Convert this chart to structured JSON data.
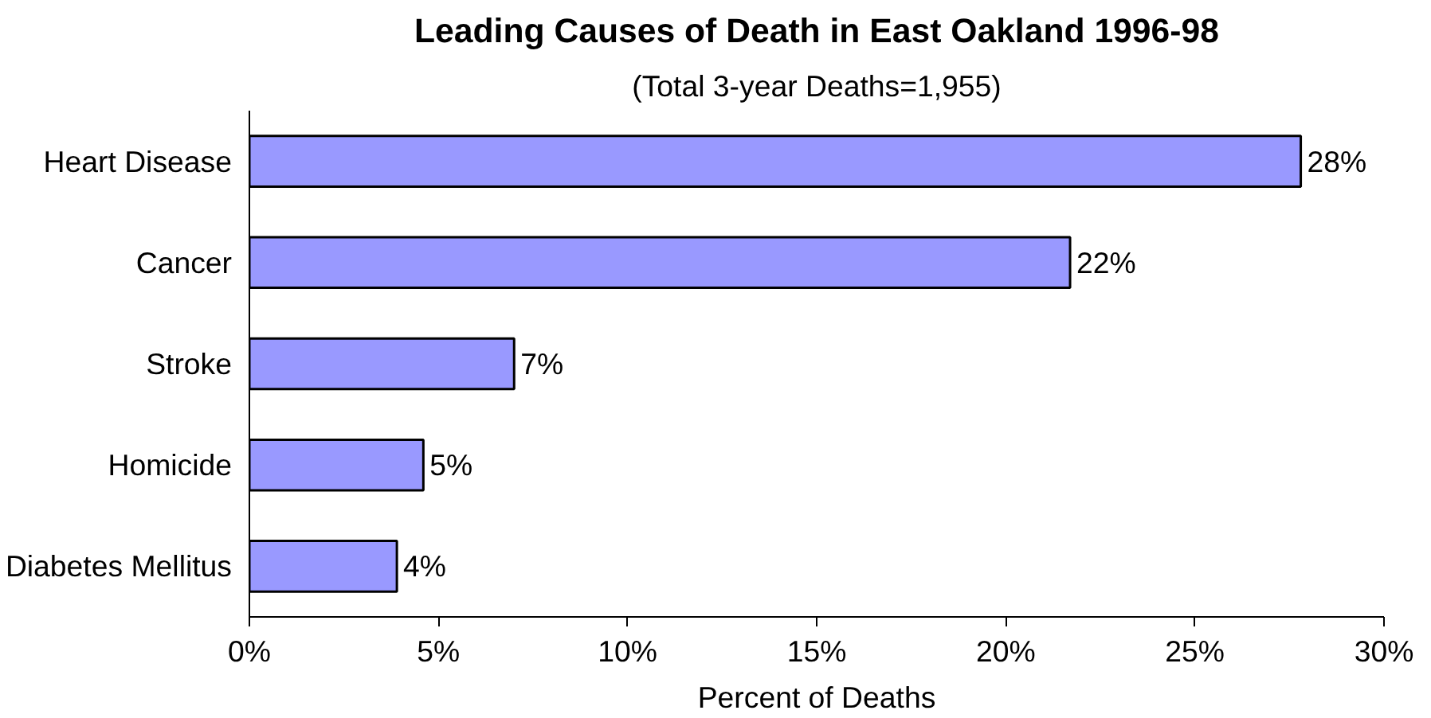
{
  "chart_data": {
    "type": "bar",
    "orientation": "horizontal",
    "title": "Leading Causes of Death in East Oakland 1996-98",
    "subtitle": "(Total 3-year Deaths=1,955)",
    "xlabel": "Percent of Deaths",
    "categories": [
      "Heart Disease",
      "Cancer",
      "Stroke",
      "Homicide",
      "Diabetes Mellitus"
    ],
    "values": [
      27.8,
      21.7,
      7.0,
      4.6,
      3.9
    ],
    "value_labels": [
      "28%",
      "22%",
      "7%",
      "5%",
      "4%"
    ],
    "color": "#9999ff",
    "xlim": [
      0,
      30
    ],
    "xticks": [
      {
        "value": 0,
        "label": "0%"
      },
      {
        "value": 5,
        "label": "5%"
      },
      {
        "value": 10,
        "label": "10%"
      },
      {
        "value": 15,
        "label": "15%"
      },
      {
        "value": 20,
        "label": "20%"
      },
      {
        "value": 25,
        "label": "25%"
      },
      {
        "value": 30,
        "label": "30%"
      }
    ],
    "grid": false
  }
}
